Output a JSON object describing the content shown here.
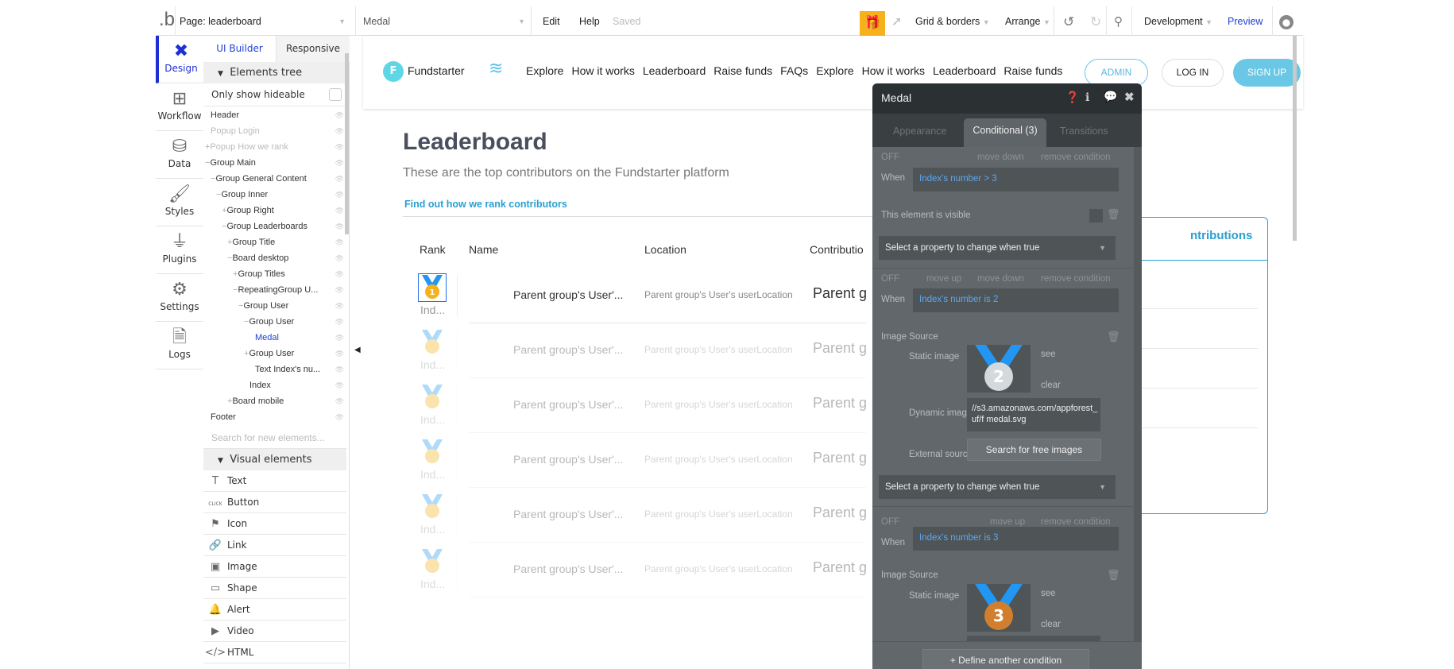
{
  "topbar": {
    "page": "Page: leaderboard",
    "element": "Medal",
    "edit": "Edit",
    "help": "Help",
    "saved": "Saved",
    "grid": "Grid & borders",
    "arrange": "Arrange",
    "env": "Development",
    "preview": "Preview",
    "gift_color": "#f5b21b"
  },
  "iconbar": [
    "Design",
    "Workflow",
    "Data",
    "Styles",
    "Plugins",
    "Settings",
    "Logs"
  ],
  "panel": {
    "tabs": [
      "UI Builder",
      "Responsive"
    ],
    "tree_header": "Elements tree",
    "only_hideable": "Only show hideable",
    "tree": [
      {
        "label": "Header",
        "indent": 0,
        "sign": "",
        "muted": false
      },
      {
        "label": "Popup Login",
        "indent": 0,
        "sign": "",
        "muted": true
      },
      {
        "label": "Popup How we rank",
        "indent": 0,
        "sign": "+",
        "muted": true
      },
      {
        "label": "Group Main",
        "indent": 0,
        "sign": "−",
        "muted": false
      },
      {
        "label": "Group General Content",
        "indent": 1,
        "sign": "−",
        "muted": false
      },
      {
        "label": "Group Inner",
        "indent": 2,
        "sign": "−",
        "muted": false
      },
      {
        "label": "Group Right",
        "indent": 3,
        "sign": "+",
        "muted": false
      },
      {
        "label": "Group Leaderboards",
        "indent": 3,
        "sign": "−",
        "muted": false
      },
      {
        "label": "Group Title",
        "indent": 4,
        "sign": "+",
        "muted": false
      },
      {
        "label": "Board desktop",
        "indent": 4,
        "sign": "−",
        "muted": false
      },
      {
        "label": "Group Titles",
        "indent": 5,
        "sign": "+",
        "muted": false
      },
      {
        "label": "RepeatingGroup U...",
        "indent": 5,
        "sign": "−",
        "muted": false
      },
      {
        "label": "Group User",
        "indent": 6,
        "sign": "−",
        "muted": false
      },
      {
        "label": "Group User",
        "indent": 7,
        "sign": "−",
        "muted": false
      },
      {
        "label": "Medal",
        "indent": 8,
        "sign": "",
        "muted": false,
        "selected": true
      },
      {
        "label": "Group User",
        "indent": 7,
        "sign": "+",
        "muted": false
      },
      {
        "label": "Text Index's nu...",
        "indent": 8,
        "sign": "",
        "muted": false
      },
      {
        "label": "Index",
        "indent": 7,
        "sign": "",
        "muted": false
      },
      {
        "label": "Board mobile",
        "indent": 4,
        "sign": "+",
        "muted": false
      },
      {
        "label": "Footer",
        "indent": 0,
        "sign": "",
        "muted": false
      }
    ],
    "search_placeholder": "Search for new elements...",
    "visual_header": "Visual elements",
    "visual": [
      {
        "label": "Text",
        "icon": "T"
      },
      {
        "label": "Button",
        "icon": "CLICK"
      },
      {
        "label": "Icon",
        "icon": "⚑"
      },
      {
        "label": "Link",
        "icon": "🔗"
      },
      {
        "label": "Image",
        "icon": "▣"
      },
      {
        "label": "Shape",
        "icon": "▭"
      },
      {
        "label": "Alert",
        "icon": "🔔"
      },
      {
        "label": "Video",
        "icon": "▶"
      },
      {
        "label": "HTML",
        "icon": "</>"
      }
    ]
  },
  "site": {
    "brand": "Fundstarter",
    "brand_letter": "F",
    "nav": [
      "Explore",
      "How it works",
      "Leaderboard",
      "Raise funds",
      "FAQs"
    ],
    "nav_overlay": [
      "Explore",
      "How it works",
      "Leaderboard",
      "Raise funds"
    ],
    "admin": "ADMIN",
    "login": "LOG IN",
    "signup": "SIGN UP",
    "accent": "#2a9fd0",
    "title": "Leaderboard",
    "subtitle": "These are the top contributors on the Fundstarter platform",
    "link": "Find out how we rank contributors",
    "headers": [
      "Rank",
      "Name",
      "Location",
      "Contributio"
    ],
    "rows": [
      {
        "rank": "1",
        "index": "Ind...",
        "name": "Parent group's User'...",
        "location": "Parent group's User's userLocation",
        "contribution": "Parent g"
      },
      {
        "rank": "",
        "index": "Ind...",
        "name": "Parent group's User'...",
        "location": "Parent group's User's userLocation",
        "contribution": "Parent g"
      },
      {
        "rank": "",
        "index": "Ind...",
        "name": "Parent group's User'...",
        "location": "Parent group's User's userLocation",
        "contribution": "Parent g"
      },
      {
        "rank": "",
        "index": "Ind...",
        "name": "Parent group's User'...",
        "location": "Parent group's User's userLocation",
        "contribution": "Parent g"
      },
      {
        "rank": "",
        "index": "Ind...",
        "name": "Parent group's User'...",
        "location": "Parent group's User's userLocation",
        "contribution": "Parent g"
      },
      {
        "rank": "",
        "index": "Ind...",
        "name": "Parent group's User'...",
        "location": "Parent group's User's userLocation",
        "contribution": "Parent g"
      }
    ],
    "side_box_title": "ntributions"
  },
  "prop": {
    "title": "Medal",
    "tabs": [
      "Appearance",
      "Conditional (3)",
      "Transitions"
    ],
    "off": "OFF",
    "when": "When",
    "move_up": "move up",
    "move_down": "move down",
    "remove": "remove condition",
    "cond1": "Index's number > 3",
    "visible": "This element is visible",
    "select": "Select a property to change when true",
    "cond2": "Index's number is 2",
    "image_source": "Image Source",
    "static_image": "Static image",
    "see": "see",
    "clear": "clear",
    "dynamic_image": "Dynamic imag",
    "dynamic_value": "//s3.amazonaws.com/appforest_uf/f medal.svg",
    "external": "External sourc",
    "search_images": "Search for free images",
    "cond3": "Index's number is 3",
    "medal2": "2",
    "medal3": "3",
    "define": "Define another condition"
  }
}
